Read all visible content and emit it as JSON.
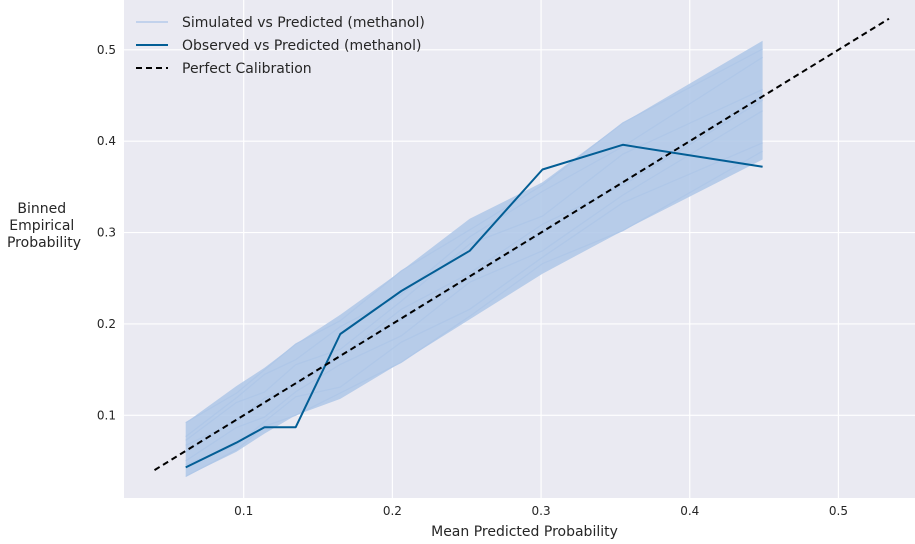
{
  "chart_data": {
    "type": "line",
    "title": "",
    "xlabel": "Mean Predicted Probability",
    "ylabel_lines": [
      "Binned",
      "Empirical",
      "Probability"
    ],
    "xlim": [
      0.0195,
      0.5515
    ],
    "ylim": [
      0.0095,
      0.5545
    ],
    "xticks": [
      0.1,
      0.2,
      0.3,
      0.4,
      0.5
    ],
    "xtick_labels": [
      "0.1",
      "0.2",
      "0.3",
      "0.4",
      "0.5"
    ],
    "yticks": [
      0.1,
      0.2,
      0.3,
      0.4,
      0.5
    ],
    "ytick_labels": [
      "0.1",
      "0.2",
      "0.3",
      "0.4",
      "0.5"
    ],
    "grid": true,
    "legend_position": "top-left",
    "colors": {
      "background": "#eaeaf2",
      "grid": "#ffffff",
      "simulated": "#aec7e8",
      "observed": "#035e95",
      "perfect": "#000000"
    },
    "simulated_band": {
      "x": [
        0.061,
        0.095,
        0.114,
        0.135,
        0.165,
        0.206,
        0.252,
        0.301,
        0.355,
        0.449
      ],
      "lower": [
        0.033,
        0.06,
        0.08,
        0.1,
        0.118,
        0.158,
        0.205,
        0.255,
        0.302,
        0.38
      ],
      "upper": [
        0.092,
        0.132,
        0.152,
        0.178,
        0.21,
        0.258,
        0.315,
        0.355,
        0.42,
        0.51
      ]
    },
    "series": [
      {
        "name": "Simulated vs Predicted (methanol)",
        "style": "faint",
        "x": [
          0.061,
          0.095,
          0.114,
          0.135,
          0.165,
          0.206,
          0.252,
          0.301,
          0.355,
          0.449
        ],
        "y": [
          0.06,
          0.095,
          0.115,
          0.135,
          0.165,
          0.205,
          0.25,
          0.3,
          0.355,
          0.45
        ]
      },
      {
        "name": "Observed vs Predicted (methanol)",
        "style": "solid",
        "x": [
          0.061,
          0.095,
          0.114,
          0.135,
          0.165,
          0.206,
          0.252,
          0.301,
          0.355,
          0.449
        ],
        "y": [
          0.043,
          0.07,
          0.087,
          0.087,
          0.189,
          0.236,
          0.28,
          0.369,
          0.396,
          0.372
        ]
      },
      {
        "name": "Perfect Calibration",
        "style": "dashed",
        "x": [
          0.04,
          0.534
        ],
        "y": [
          0.04,
          0.534
        ]
      }
    ]
  }
}
